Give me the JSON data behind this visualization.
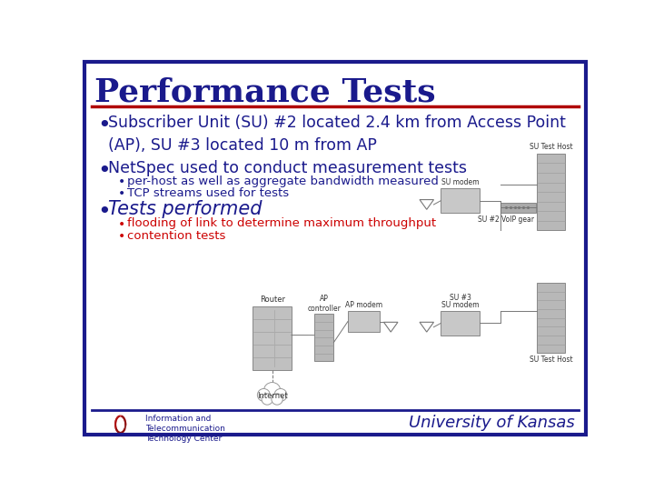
{
  "title": "Performance Tests",
  "title_color": "#1a1a8c",
  "title_fontsize": 26,
  "border_color": "#1a1a8c",
  "border_linewidth": 3,
  "red_line_color": "#b00000",
  "background_color": "#ffffff",
  "bullet1": "Subscriber Unit (SU) #2 located 2.4 km from Access Point\n(AP), SU #3 located 10 m from AP",
  "bullet2": "NetSpec used to conduct measurement tests",
  "sub_bullet2a": "per-host as well as aggregate bandwidth measured",
  "sub_bullet2b": "TCP streams used for tests",
  "bullet3": "Tests performed",
  "sub_bullet3a": "flooding of link to determine maximum throughput",
  "sub_bullet3b": "contention tests",
  "bullet_color": "#1a1a8c",
  "text_color": "#1a1a8c",
  "sub_text_color": "#cc0000",
  "footer_text": "University of Kansas",
  "footer_color": "#1a1a8c",
  "footer_fontsize": 13,
  "diagram_color_server": "#b8b8b8",
  "diagram_color_modem": "#c8c8c8",
  "diagram_color_router": "#c0c0c0",
  "diagram_line_color": "#777777",
  "diagram_text_color": "#333333"
}
